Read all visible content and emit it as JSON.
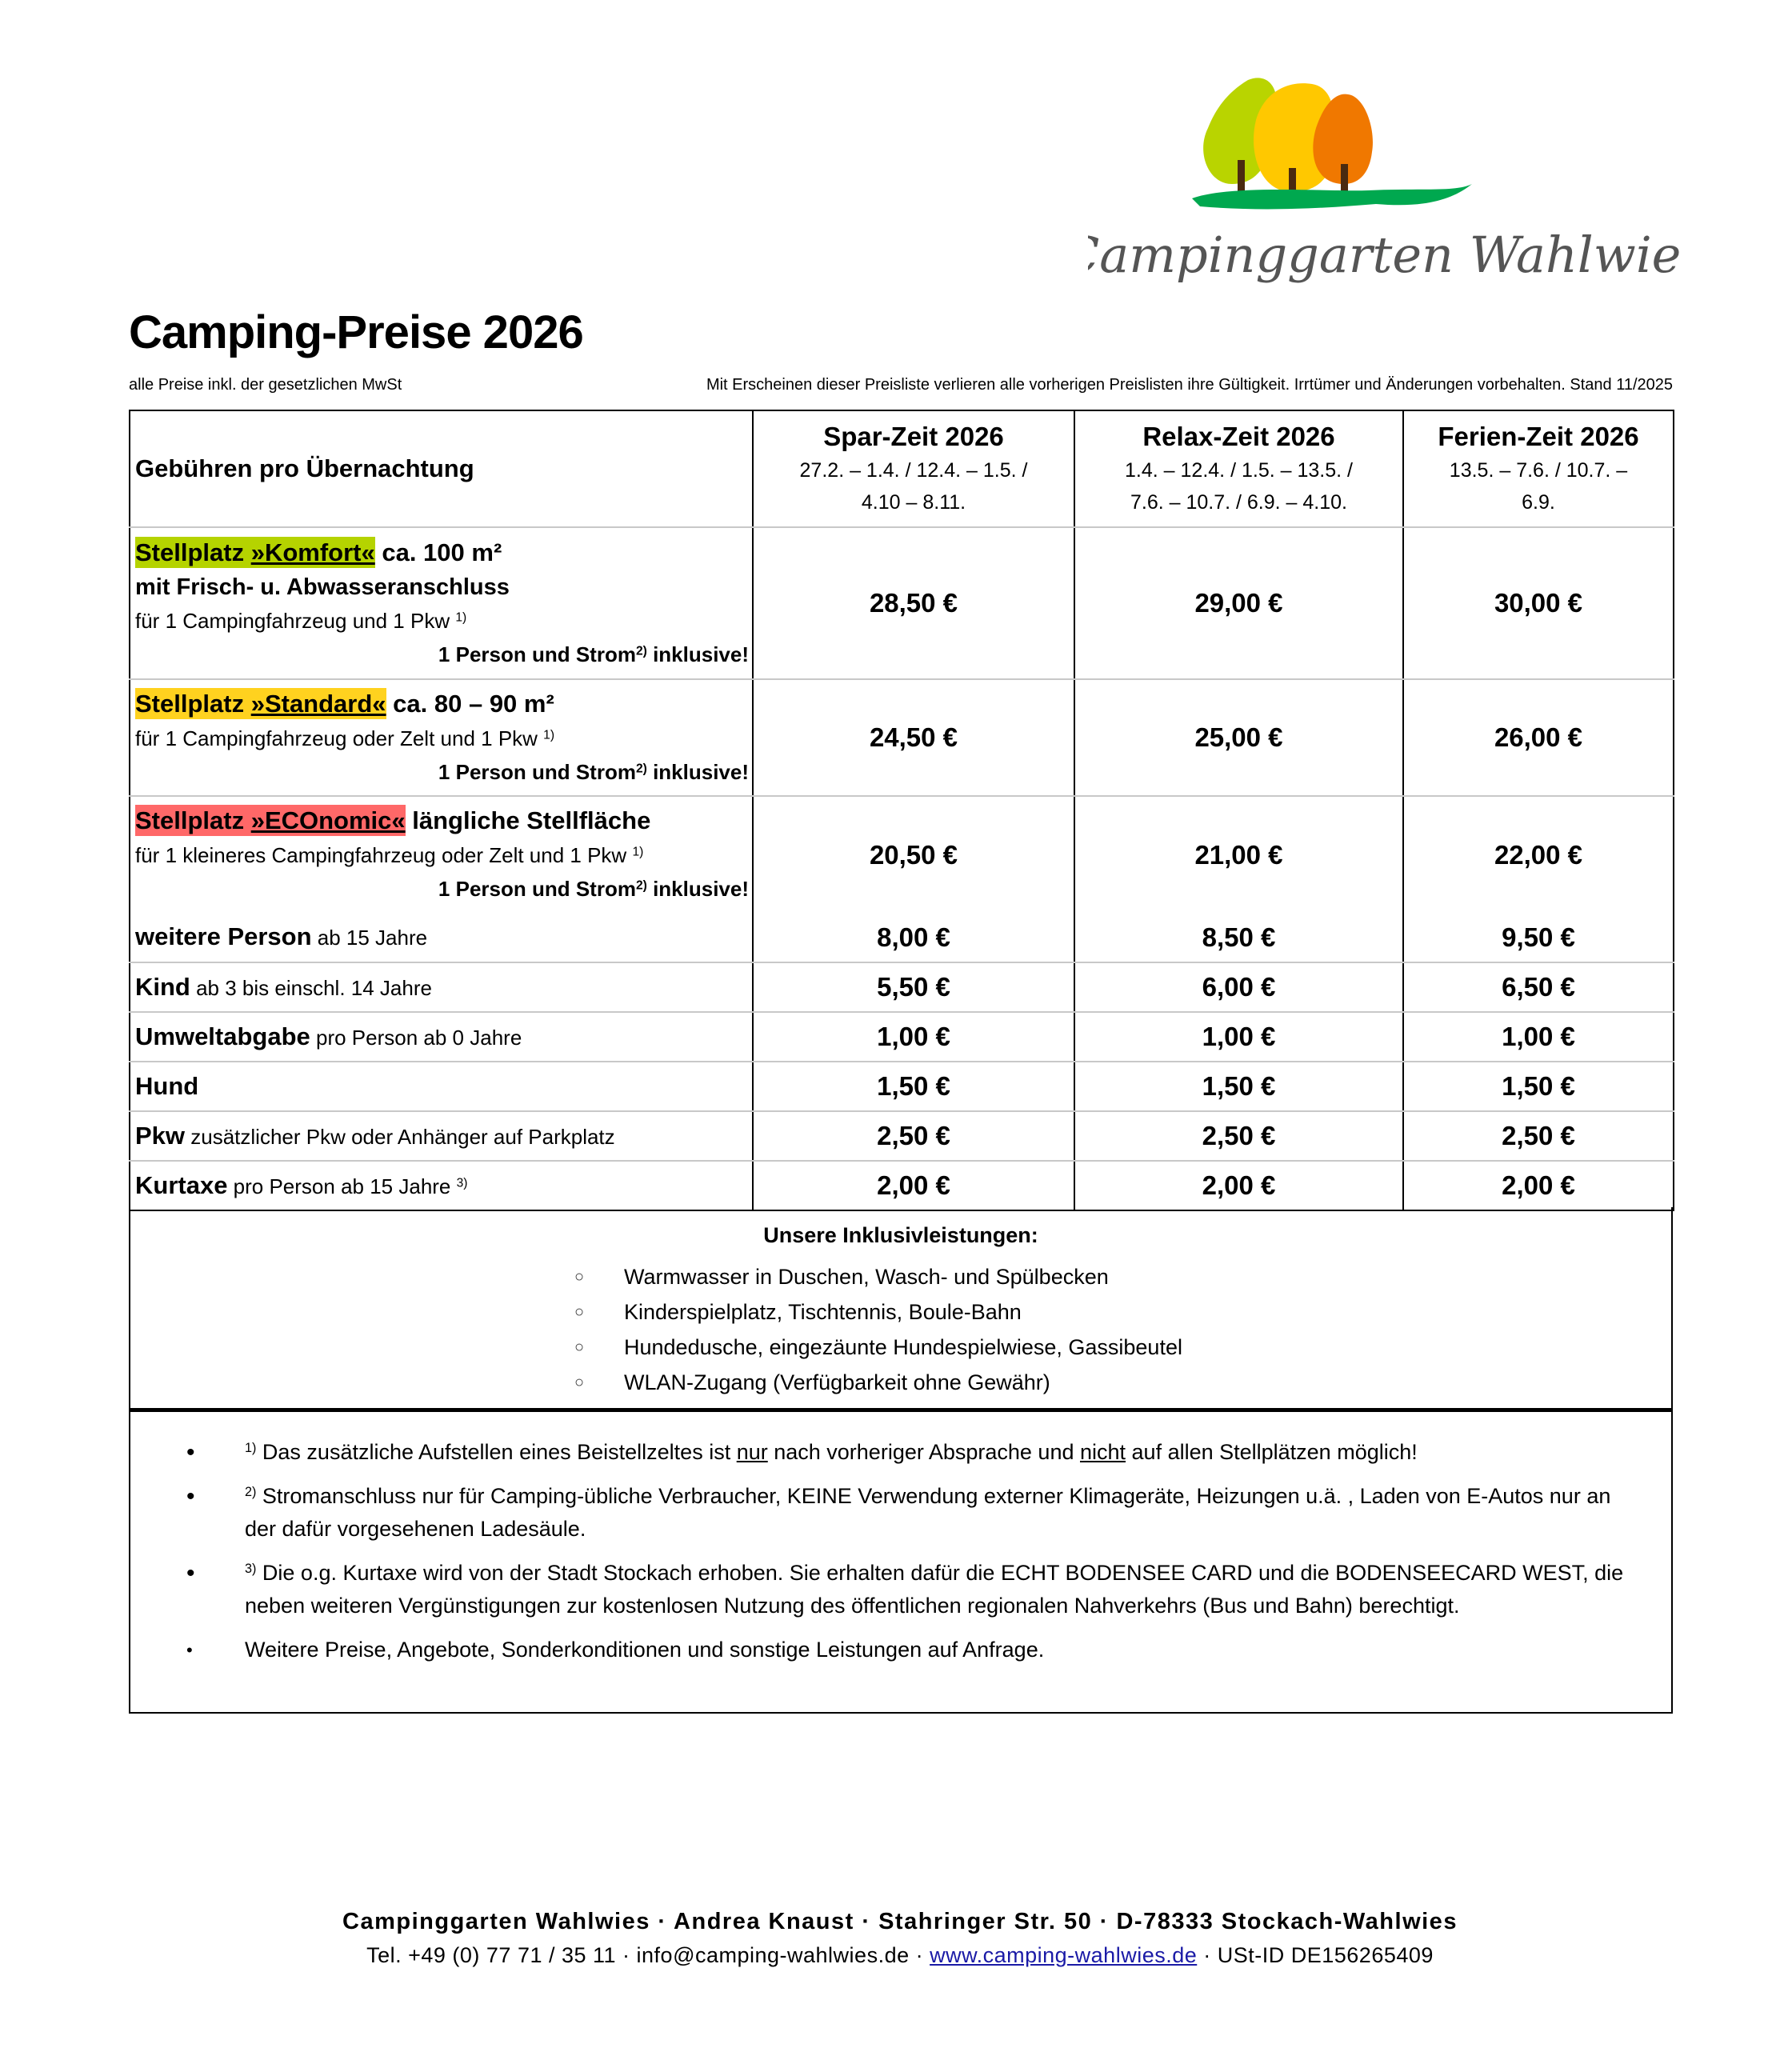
{
  "logo": {
    "text": "Campinggarten Wahlwies",
    "colors": {
      "tree1": "#b9d400",
      "tree2": "#ffc800",
      "tree3": "#f07800",
      "grass": "#00a84f",
      "text": "#555555"
    }
  },
  "title": "Camping-Preise 2026",
  "subtitle": {
    "left": "alle Preise inkl. der gesetzlichen MwSt",
    "right": "Mit Erscheinen dieser Preisliste verlieren alle vorherigen Preislisten ihre Gültigkeit. Irrtümer und Änderungen vorbehalten. Stand 11/2025"
  },
  "table": {
    "header_label": "Gebühren pro Übernachtung",
    "seasons": [
      {
        "name": "Spar-Zeit 2026",
        "dates1": "27.2. – 1.4. / 12.4. – 1.5. /",
        "dates2": "4.10 – 8.11."
      },
      {
        "name": "Relax-Zeit 2026",
        "dates1": "1.4. – 12.4. / 1.5. – 13.5. /",
        "dates2": "7.6. – 10.7. / 6.9. – 4.10."
      },
      {
        "name": "Ferien-Zeit 2026",
        "dates1": "13.5. – 7.6. / 10.7. –",
        "dates2": "6.9."
      }
    ],
    "pitches": [
      {
        "prefix": "Stellplatz ",
        "name": "»Komfort«",
        "size": " ca. 100 m²",
        "color": "#b5d300",
        "extra": "mit Frisch- u. Abwasseranschluss",
        "desc": "für 1 Campingfahrzeug und 1 Pkw ",
        "desc_sup": "1)",
        "incl_a": "1 Person und Strom",
        "incl_sup": "2)",
        "incl_b": " inklusive!",
        "prices": [
          "28,50 €",
          "29,00 €",
          "30,00 €"
        ]
      },
      {
        "prefix": "Stellplatz ",
        "name": "»Standard«",
        "size": " ca. 80 – 90 m²",
        "color": "#ffd21f",
        "desc": "für 1 Campingfahrzeug oder Zelt und 1 Pkw ",
        "desc_sup": "1)",
        "incl_a": "1 Person und Strom",
        "incl_sup": "2)",
        "incl_b": " inklusive!",
        "prices": [
          "24,50 €",
          "25,00 €",
          "26,00 €"
        ]
      },
      {
        "prefix": "Stellplatz ",
        "name": "»ECOnomic«",
        "size": " längliche Stellfläche",
        "color": "#ff6868",
        "desc": "für 1 kleineres Campingfahrzeug oder Zelt und 1 Pkw ",
        "desc_sup": "1)",
        "incl_a": "1 Person und Strom",
        "incl_sup": "2)",
        "incl_b": " inklusive!",
        "prices": [
          "20,50 €",
          "21,00 €",
          "22,00 €"
        ]
      }
    ],
    "extras": [
      {
        "label": "weitere Person",
        "desc": " ab 15 Jahre",
        "sup": "",
        "prices": [
          "8,00 €",
          "8,50 €",
          "9,50 €"
        ]
      },
      {
        "label": "Kind",
        "desc": " ab 3 bis einschl. 14 Jahre",
        "sup": "",
        "prices": [
          "5,50 €",
          "6,00 €",
          "6,50 €"
        ]
      },
      {
        "label": "Umweltabgabe",
        "desc": " pro Person ab 0 Jahre",
        "sup": "",
        "prices": [
          "1,00 €",
          "1,00 €",
          "1,00 €"
        ]
      },
      {
        "label": "Hund",
        "desc": "",
        "sup": "",
        "prices": [
          "1,50 €",
          "1,50 €",
          "1,50 €"
        ]
      },
      {
        "label": "Pkw",
        "desc": " zusätzlicher Pkw oder Anhänger auf Parkplatz",
        "sup": "",
        "prices": [
          "2,50 €",
          "2,50 €",
          "2,50 €"
        ]
      },
      {
        "label": "Kurtaxe",
        "desc": " pro Person ab 15 Jahre ",
        "sup": "3)",
        "prices": [
          "2,00 €",
          "2,00 €",
          "2,00 €"
        ]
      }
    ]
  },
  "inclusive": {
    "title": "Unsere Inklusivleistungen:",
    "bullet": "○",
    "items": [
      "Warmwasser in Duschen, Wasch- und Spülbecken",
      "Kinderspielplatz, Tischtennis, Boule-Bahn",
      "Hundedusche, eingezäunte Hundespielwiese, Gassibeutel",
      "WLAN-Zugang (Verfügbarkeit ohne Gewähr)"
    ]
  },
  "notes": {
    "bullet": "•",
    "n1": {
      "sup": "1)",
      "a": " Das zusätzliche Aufstellen eines Beistellzeltes ist ",
      "u1": "nur",
      "b": " nach vorheriger Absprache und ",
      "u2": "nicht",
      "c": " auf allen Stellplätzen möglich!"
    },
    "n2": {
      "sup": "2)",
      "text": " Stromanschluss nur für Camping-übliche Verbraucher, KEINE Verwendung externer Klimageräte, Heizungen u.ä. , Laden von E-Autos nur an der dafür vorgesehenen Ladesäule."
    },
    "n3": {
      "sup": "3)",
      "text": " Die o.g. Kurtaxe wird von der Stadt Stockach erhoben. Sie erhalten dafür die ECHT BODENSEE CARD und die BODENSEECARD WEST, die neben weiteren Vergünstigungen zur kostenlosen Nutzung des öffentlichen regionalen Nahverkehrs (Bus und Bahn) berechtigt."
    },
    "n4": {
      "text": "Weitere Preise, Angebote, Sonderkonditionen und sonstige Leistungen auf Anfrage."
    }
  },
  "footer": {
    "line1": "Campinggarten Wahlwies · Andrea Knaust · Stahringer Str. 50 · D-78333 Stockach-Wahlwies",
    "tel": "Tel. +49 (0) 77 71 / 35 11 · info@camping-wahlwies.de · ",
    "web": "www.camping-wahlwies.de",
    "ust": " · USt-ID DE156265409"
  }
}
